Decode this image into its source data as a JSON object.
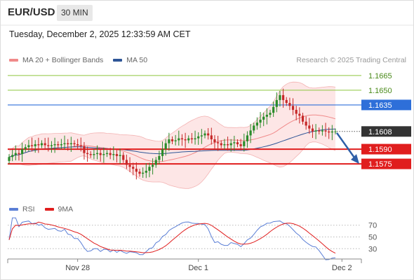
{
  "header": {
    "symbol": "EUR/USD",
    "timeframe": "30 MIN"
  },
  "datetime": "Tuesday, December 2, 2025 12:33:59 AM CET",
  "credit": "Research © 2025 Trading Central",
  "legend": [
    {
      "label": "MA 20 + Bollinger Bands",
      "color": "#f08a8a"
    },
    {
      "label": "MA 50",
      "color": "#2e5597"
    }
  ],
  "rsi_legend": [
    {
      "label": "RSI",
      "color": "#5b7fd6"
    },
    {
      "label": "9MA",
      "color": "#e01e1e"
    }
  ],
  "colors": {
    "up": "#2a8c2a",
    "down": "#c62828",
    "ma20": "#f08a8a",
    "ma50": "#2e5597",
    "band": "#fde3e3",
    "resistance": "#8dc63f",
    "pivot": "#2e6fd9",
    "support": "#e01e1e",
    "arrow": "#2e5fa8",
    "last": "#333333"
  },
  "chart_data": [
    {
      "type": "candlestick",
      "name": "EUR/USD 30 MIN",
      "ylim": [
        1.1548,
        1.1672
      ],
      "x_ticks": [
        "Nov 28",
        "Dec 1",
        "Dec 2"
      ],
      "x_tick_index": [
        21,
        58,
        102
      ],
      "closes": [
        1.1582,
        1.1584,
        1.1586,
        1.1585,
        1.159,
        1.1592,
        1.1594,
        1.1593,
        1.1595,
        1.1594,
        1.1596,
        1.1594,
        1.1593,
        1.1594,
        1.1595,
        1.1594,
        1.1595,
        1.1596,
        1.1595,
        1.1596,
        1.1595,
        1.1594,
        1.1593,
        1.1586,
        1.1585,
        1.1584,
        1.1585,
        1.1586,
        1.1584,
        1.1585,
        1.1586,
        1.1584,
        1.1585,
        1.1583,
        1.1584,
        1.1579,
        1.1574,
        1.1572,
        1.157,
        1.1567,
        1.1565,
        1.1566,
        1.1568,
        1.1572,
        1.1574,
        1.1579,
        1.1583,
        1.159,
        1.1596,
        1.16,
        1.1598,
        1.1599,
        1.1601,
        1.16,
        1.1599,
        1.1601,
        1.16,
        1.1601,
        1.1603,
        1.1604,
        1.1606,
        1.1604,
        1.16,
        1.1597,
        1.1596,
        1.1594,
        1.1595,
        1.1594,
        1.1596,
        1.1597,
        1.1595,
        1.1593,
        1.1598,
        1.1604,
        1.1609,
        1.1614,
        1.1617,
        1.162,
        1.1623,
        1.1625,
        1.1627,
        1.1633,
        1.164,
        1.1645,
        1.164,
        1.1637,
        1.1634,
        1.163,
        1.1626,
        1.1624,
        1.1618,
        1.1614,
        1.1611,
        1.1608,
        1.1609,
        1.1608,
        1.1609,
        1.1608,
        1.1607,
        1.1608,
        1.1608
      ],
      "levels": [
        {
          "value": 1.1665,
          "label": "1.1665",
          "kind": "resistance"
        },
        {
          "value": 1.165,
          "label": "1.1650",
          "kind": "resistance"
        },
        {
          "value": 1.1635,
          "label": "1.1635",
          "kind": "pivot"
        },
        {
          "value": 1.159,
          "label": "1.1590",
          "kind": "support"
        },
        {
          "value": 1.1575,
          "label": "1.1575",
          "kind": "support"
        }
      ],
      "last_price": {
        "value": 1.1608,
        "label": "1.1608"
      },
      "forecast": {
        "from": 1.1608,
        "to": 1.1575,
        "direction": "down"
      }
    },
    {
      "type": "line",
      "name": "RSI",
      "ylim": [
        22,
        78
      ],
      "y_ticks": [
        70,
        50,
        30
      ],
      "y_tick_labels": [
        "70",
        "50",
        "30"
      ],
      "series_names": [
        "RSI",
        "9MA"
      ]
    }
  ]
}
